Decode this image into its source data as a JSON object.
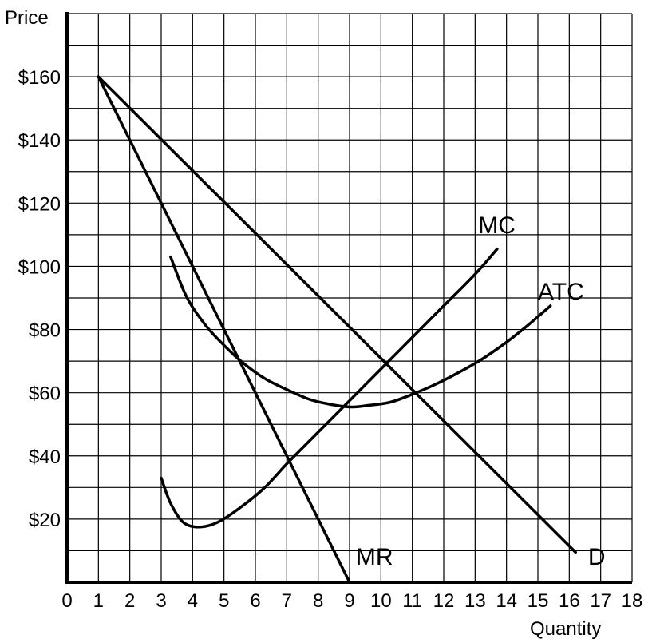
{
  "chart_data": {
    "type": "line",
    "xlabel": "Quantity",
    "ylabel": "Price",
    "xlim": [
      0,
      18
    ],
    "ylim": [
      0,
      180
    ],
    "grid": true,
    "x_ticks": [
      "0",
      "1",
      "2",
      "3",
      "4",
      "5",
      "6",
      "7",
      "8",
      "9",
      "10",
      "11",
      "12",
      "13",
      "14",
      "15",
      "16",
      "17",
      "18"
    ],
    "y_ticks": [
      {
        "value": 20,
        "label": "$20"
      },
      {
        "value": 40,
        "label": "$40"
      },
      {
        "value": 60,
        "label": "$60"
      },
      {
        "value": 80,
        "label": "$80"
      },
      {
        "value": 100,
        "label": "$100"
      },
      {
        "value": 120,
        "label": "$120"
      },
      {
        "value": 140,
        "label": "$140"
      },
      {
        "value": 160,
        "label": "$160"
      }
    ],
    "series": [
      {
        "name": "D",
        "points": [
          [
            1,
            160
          ],
          [
            16.2,
            9.5
          ]
        ],
        "label_point": [
          16.6,
          5.5
        ]
      },
      {
        "name": "MR",
        "points": [
          [
            1,
            160
          ],
          [
            9,
            0
          ]
        ],
        "label_point": [
          9.2,
          5.5
        ]
      },
      {
        "name": "MC",
        "points": [
          [
            3,
            33
          ],
          [
            3.3,
            25
          ],
          [
            3.7,
            19
          ],
          [
            4.2,
            17.5
          ],
          [
            4.8,
            19
          ],
          [
            5.5,
            23.5
          ],
          [
            6.3,
            30
          ],
          [
            7,
            37.5
          ],
          [
            7.6,
            43.5
          ],
          [
            8.4,
            51.5
          ],
          [
            9.2,
            59.5
          ],
          [
            10,
            67.5
          ],
          [
            11,
            77.5
          ],
          [
            12,
            87.5
          ],
          [
            13,
            97.5
          ],
          [
            13.7,
            105.5
          ]
        ],
        "label_point": [
          13.1,
          110.5
        ]
      },
      {
        "name": "ATC",
        "points": [
          [
            3.3,
            103
          ],
          [
            3.8,
            90.5
          ],
          [
            4.4,
            81.5
          ],
          [
            5,
            75
          ],
          [
            5.6,
            69.5
          ],
          [
            6.3,
            64.5
          ],
          [
            7,
            61
          ],
          [
            7.7,
            58
          ],
          [
            8.3,
            56.5
          ],
          [
            9,
            55.5
          ],
          [
            9.6,
            56
          ],
          [
            10.3,
            57
          ],
          [
            11,
            59.5
          ],
          [
            11.7,
            62.5
          ],
          [
            12.4,
            66
          ],
          [
            13.2,
            70.5
          ],
          [
            14,
            76
          ],
          [
            14.7,
            81.5
          ],
          [
            15.4,
            87.5
          ]
        ],
        "label_point": [
          15,
          89.5
        ]
      }
    ]
  }
}
